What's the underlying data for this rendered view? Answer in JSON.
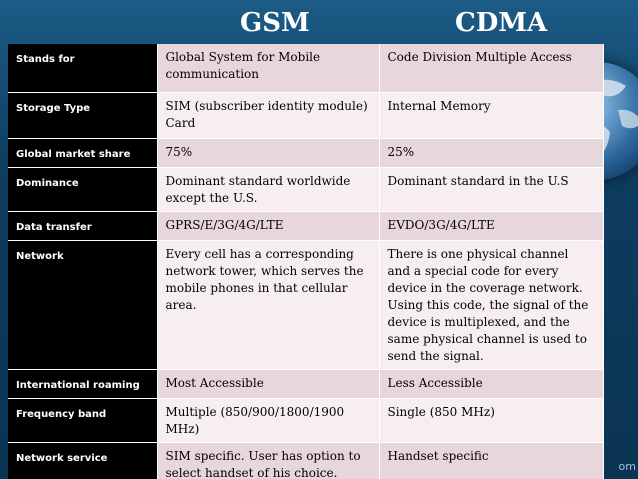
{
  "header": {
    "gsm": "GSM",
    "cdma": "CDMA"
  },
  "rows": [
    {
      "label": "Stands for",
      "gsm": "Global System for Mobile communication",
      "cdma": "Code Division Multiple Access"
    },
    {
      "label": "Storage Type",
      "gsm": "SIM (subscriber identity module) Card",
      "cdma": "Internal Memory"
    },
    {
      "label": "Global market share",
      "gsm": "75%",
      "cdma": "25%"
    },
    {
      "label": "Dominance",
      "gsm": "Dominant standard worldwide except the U.S.",
      "cdma": "Dominant standard in the U.S"
    },
    {
      "label": "Data transfer",
      "gsm": "GPRS/E/3G/4G/LTE",
      "cdma": "EVDO/3G/4G/LTE"
    },
    {
      "label": "Network",
      "gsm": "Every cell has a corresponding network tower, which serves the mobile phones in that cellular area.",
      "cdma": "There is one physical channel and a special code for every device in the coverage network. Using this code, the signal of the device is multiplexed, and the same physical channel is used to send the signal."
    },
    {
      "label": "International roaming",
      "gsm": "Most Accessible",
      "cdma": "Less Accessible"
    },
    {
      "label": "Frequency band",
      "gsm": "Multiple (850/900/1800/1900 MHz)",
      "cdma": "Single (850 MHz)"
    },
    {
      "label": "Network service",
      "gsm": "SIM specific. User has option to select handset of his choice.",
      "cdma": "Handset specific"
    }
  ],
  "footer": {
    "corner_text": "om"
  },
  "colors": {
    "background": "#0e3d60",
    "label_bg": "#000000",
    "row_odd": "#e8d6dd",
    "row_even": "#f7eef1"
  }
}
